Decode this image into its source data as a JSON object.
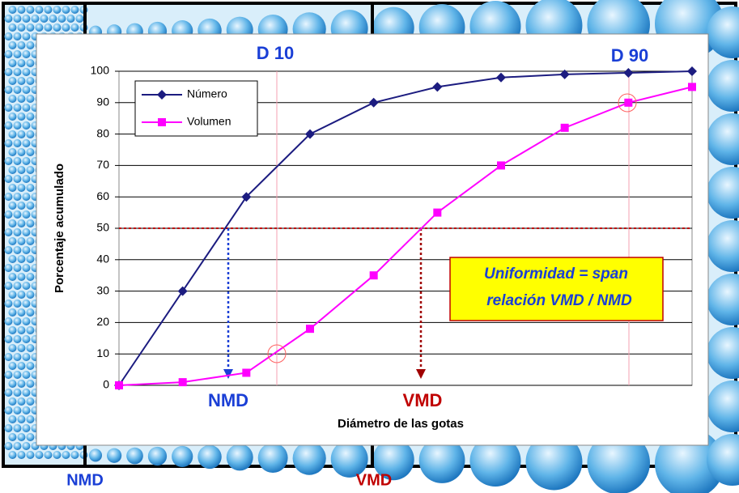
{
  "chart_data": {
    "type": "line",
    "y_label": "Porcentaje acumulado",
    "x_label": "Diámetro de las gotas",
    "categories": [
      null,
      null,
      null,
      null,
      null,
      null,
      null,
      null,
      null,
      null
    ],
    "series": [
      {
        "name": "Número",
        "color": "#1c1c80",
        "marker": "diamond",
        "values": [
          0,
          30,
          60,
          80,
          90,
          95,
          98,
          99,
          99.5,
          100
        ]
      },
      {
        "name": "Volumen",
        "color": "#ff00ff",
        "marker": "square",
        "values": [
          0,
          1,
          4,
          18,
          35,
          55,
          70,
          82,
          90,
          95
        ]
      }
    ],
    "ylim": [
      0,
      100
    ],
    "yticks": [
      0,
      10,
      20,
      30,
      40,
      50,
      60,
      70,
      80,
      90,
      100
    ],
    "grid": true,
    "legend": "upper left",
    "annotations": [
      "D 10",
      "D 90",
      "NMD",
      "VMD",
      "Uniformidad = span",
      "relación VMD / NMD"
    ]
  },
  "footer_labels": [
    "NMD",
    "VMD"
  ]
}
